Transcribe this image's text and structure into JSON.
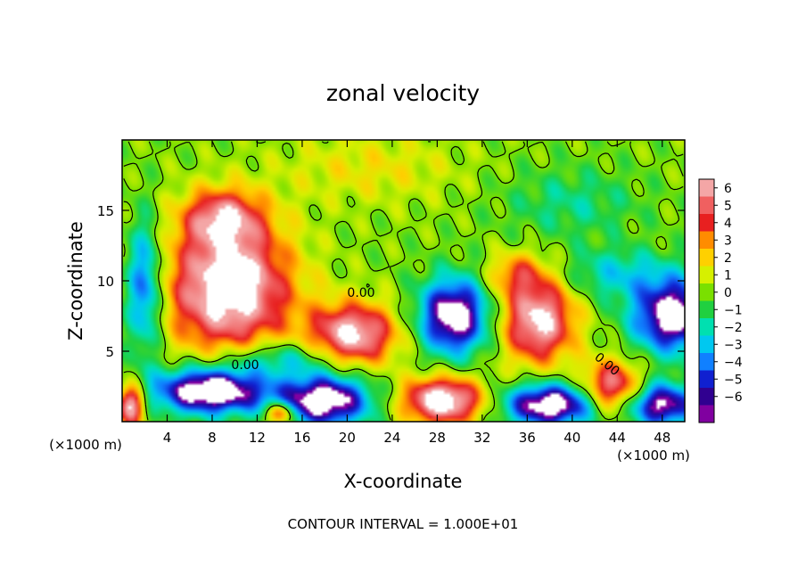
{
  "chart_data": {
    "type": "heatmap",
    "title": "zonal velocity",
    "xlabel": "X-coordinate",
    "ylabel": "Z-coordinate",
    "x_unit_note": "(×1000 m)",
    "y_unit_note": "(×1000 m)",
    "footer": "CONTOUR INTERVAL = 1.000E+01",
    "xlim": [
      0,
      50
    ],
    "ylim": [
      0,
      20
    ],
    "x_ticks": [
      4,
      8,
      12,
      16,
      20,
      24,
      28,
      32,
      36,
      40,
      44,
      48
    ],
    "y_ticks": [
      5,
      10,
      15
    ],
    "colorbar": {
      "labels": [
        "6",
        "5",
        "4",
        "3",
        "2",
        "1",
        "0",
        "−1",
        "−2",
        "−3",
        "−4",
        "−5",
        "−6"
      ],
      "colors": [
        "#f4a6a6",
        "#f06060",
        "#e82020",
        "#ff8c00",
        "#ffd000",
        "#d6f000",
        "#7ae000",
        "#20d040",
        "#00e0b0",
        "#00c8f0",
        "#1080ff",
        "#1020d0",
        "#300090",
        "#8000a0"
      ]
    },
    "contour_label": "0.00",
    "background_value": 0,
    "anomalies": [
      {
        "x": 9.5,
        "z": 9.5,
        "sx": 5.5,
        "sz": 4.5,
        "value": 8
      },
      {
        "x": 9,
        "z": 14.5,
        "sx": 3.5,
        "sz": 2.0,
        "value": 5
      },
      {
        "x": 20.5,
        "z": 6.2,
        "sx": 3.8,
        "sz": 2.2,
        "value": 7
      },
      {
        "x": 37,
        "z": 7.2,
        "sx": 3.2,
        "sz": 3.0,
        "value": 7
      },
      {
        "x": 35,
        "z": 10.5,
        "sx": 2.5,
        "sz": 1.5,
        "value": 3
      },
      {
        "x": 29.5,
        "z": 7.5,
        "sx": 3.0,
        "sz": 2.6,
        "value": -8
      },
      {
        "x": 49,
        "z": 7.5,
        "sx": 3.5,
        "sz": 2.5,
        "value": -8
      },
      {
        "x": 2,
        "z": 9.5,
        "sx": 1.6,
        "sz": 4.5,
        "value": -5
      },
      {
        "x": 44,
        "z": 10.5,
        "sx": 5.0,
        "sz": 1.8,
        "value": -2.5
      },
      {
        "x": 8,
        "z": 2.2,
        "sx": 5.0,
        "sz": 1.6,
        "value": -9
      },
      {
        "x": 18,
        "z": 1.5,
        "sx": 4.0,
        "sz": 1.8,
        "value": -8
      },
      {
        "x": 38,
        "z": 1.2,
        "sx": 4.0,
        "sz": 1.5,
        "value": -8
      },
      {
        "x": 48,
        "z": 1.2,
        "sx": 3.0,
        "sz": 1.5,
        "value": -7
      },
      {
        "x": 28.5,
        "z": 1.5,
        "sx": 3.5,
        "sz": 1.6,
        "value": 8
      },
      {
        "x": 43.5,
        "z": 2.5,
        "sx": 2.5,
        "sz": 1.8,
        "value": 6
      },
      {
        "x": 0.8,
        "z": 1.2,
        "sx": 1.2,
        "sz": 1.5,
        "value": 7
      },
      {
        "x": 14,
        "z": 0.6,
        "sx": 1.2,
        "sz": 0.8,
        "value": 6
      },
      {
        "x": 14,
        "z": 4.5,
        "sx": 5.0,
        "sz": 1.3,
        "value": -3
      },
      {
        "x": 22,
        "z": 18,
        "sx": 8.0,
        "sz": 2.5,
        "value": 1.5
      },
      {
        "x": 40,
        "z": 15.5,
        "sx": 6.0,
        "sz": 2.5,
        "value": -1.6
      }
    ]
  }
}
